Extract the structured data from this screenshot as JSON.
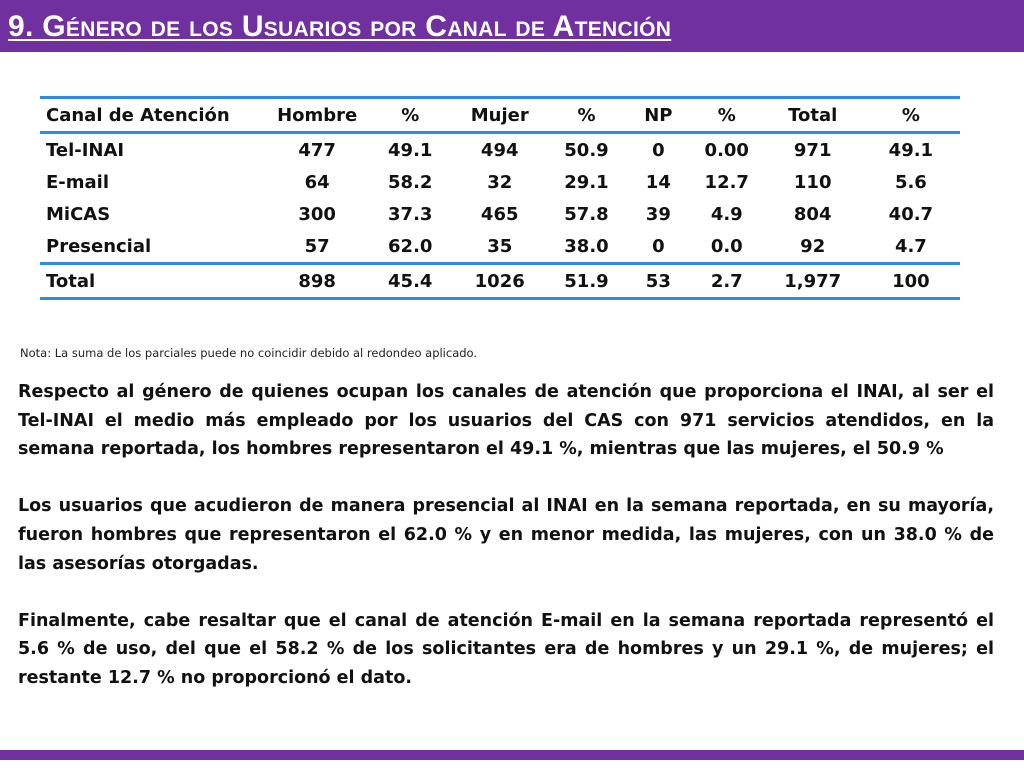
{
  "header": {
    "title": "9. Género de los Usuarios por Canal de Atención"
  },
  "table": {
    "columns": [
      "Canal de Atención",
      "Hombre",
      "%",
      "Mujer",
      "%",
      "NP",
      "%",
      "Total",
      "%"
    ],
    "rows": [
      [
        "Tel-INAI",
        "477",
        "49.1",
        "494",
        "50.9",
        "0",
        "0.00",
        "971",
        "49.1"
      ],
      [
        "E-mail",
        "64",
        "58.2",
        "32",
        "29.1",
        "14",
        "12.7",
        "110",
        "5.6"
      ],
      [
        "MiCAS",
        "300",
        "37.3",
        "465",
        "57.8",
        "39",
        "4.9",
        "804",
        "40.7"
      ],
      [
        "Presencial",
        "57",
        "62.0",
        "35",
        "38.0",
        "0",
        "0.0",
        "92",
        "4.7"
      ]
    ],
    "total_row": [
      "Total",
      "898",
      "45.4",
      "1026",
      "51.9",
      "53",
      "2.7",
      "1,977",
      "100"
    ],
    "rule_color": "#2e8ae6"
  },
  "note": "Nota: La suma de los parciales puede no coincidir debido al redondeo aplicado.",
  "paragraphs": [
    "Respecto al género de quienes ocupan los canales de atención que proporciona el INAI, al ser el Tel-INAI el medio más empleado por los usuarios del CAS con 971 servicios atendidos, en la semana reportada, los hombres representaron el 49.1 %, mientras que las mujeres, el 50.9 %",
    "Los usuarios que acudieron de manera presencial al INAI en la semana reportada, en su mayoría, fueron hombres que representaron el 62.0 % y en menor medida, las mujeres, con un 38.0 % de las asesorías otorgadas.",
    "Finalmente, cabe resaltar que el canal de atención E-mail en la semana reportada representó el 5.6 % de uso, del que el 58.2 % de los solicitantes era de hombres y un 29.1 %, de mujeres; el restante 12.7 % no proporcionó el dato."
  ],
  "theme": {
    "accent": "#7030a0"
  }
}
